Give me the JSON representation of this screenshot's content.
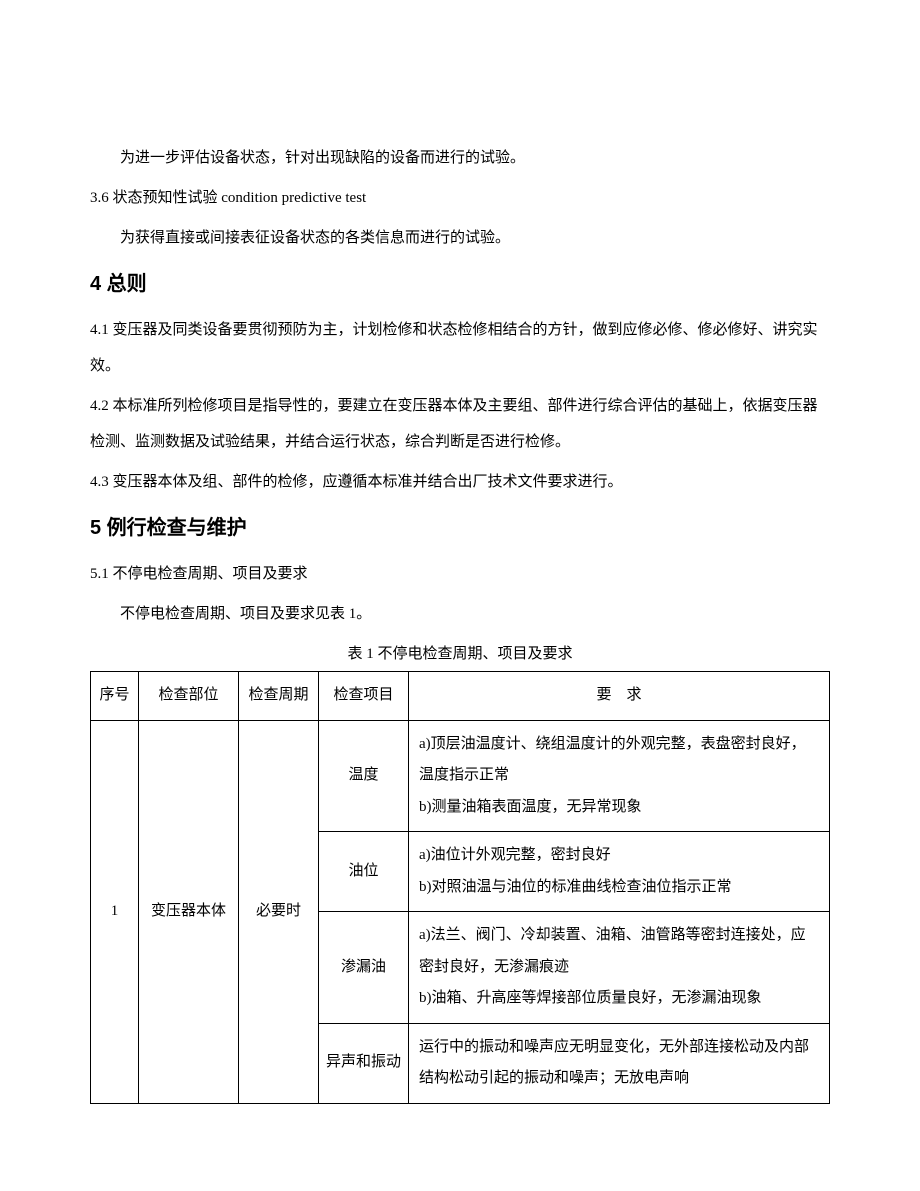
{
  "intro": {
    "line1": "为进一步评估设备状态，针对出现缺陷的设备而进行的试验。",
    "clause36": "3.6 状态预知性试验 condition predictive test",
    "line2": "为获得直接或间接表征设备状态的各类信息而进行的试验。"
  },
  "section4": {
    "heading": "4 总则",
    "p41": "4.1 变压器及同类设备要贯彻预防为主，计划检修和状态检修相结合的方针，做到应修必修、修必修好、讲究实效。",
    "p42": "4.2 本标准所列检修项目是指导性的，要建立在变压器本体及主要组、部件进行综合评估的基础上，依据变压器检测、监测数据及试验结果，并结合运行状态，综合判断是否进行检修。",
    "p43": "4.3 变压器本体及组、部件的检修，应遵循本标准并结合出厂技术文件要求进行。"
  },
  "section5": {
    "heading": "5 例行检查与维护",
    "p51": "5.1 不停电检查周期、项目及要求",
    "p51_text": "不停电检查周期、项目及要求见表 1。",
    "table_caption": "表 1 不停电检查周期、项目及要求"
  },
  "table": {
    "headers": {
      "num": "序号",
      "part": "检查部位",
      "period": "检查周期",
      "item": "检查项目",
      "req": "要求"
    },
    "row": {
      "num": "1",
      "part": "变压器本体",
      "period": "必要时",
      "items": [
        {
          "label": "温度",
          "req": "a)顶层油温度计、绕组温度计的外观完整，表盘密封良好，温度指示正常\nb)测量油箱表面温度，无异常现象"
        },
        {
          "label": "油位",
          "req": "a)油位计外观完整，密封良好\nb)对照油温与油位的标准曲线检查油位指示正常"
        },
        {
          "label": "渗漏油",
          "req": "a)法兰、阀门、冷却装置、油箱、油管路等密封连接处，应密封良好，无渗漏痕迹\nb)油箱、升高座等焊接部位质量良好，无渗漏油现象"
        },
        {
          "label": "异声和振动",
          "req": "运行中的振动和噪声应无明显变化，无外部连接松动及内部结构松动引起的振动和噪声；无放电声响"
        }
      ]
    }
  }
}
